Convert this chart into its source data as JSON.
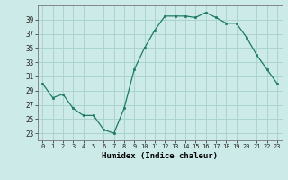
{
  "x": [
    0,
    1,
    2,
    3,
    4,
    5,
    6,
    7,
    8,
    9,
    10,
    11,
    12,
    13,
    14,
    15,
    16,
    17,
    18,
    19,
    20,
    21,
    22,
    23
  ],
  "y": [
    30,
    28,
    28.5,
    26.5,
    25.5,
    25.5,
    23.5,
    23,
    26.5,
    32,
    35,
    37.5,
    39.5,
    39.5,
    39.5,
    39.3,
    40,
    39.3,
    38.5,
    38.5,
    36.5,
    34,
    32,
    30
  ],
  "line_color": "#1e7a64",
  "marker_color": "#1e7a64",
  "bg_color": "#cceae7",
  "grid_color": "#aad4cf",
  "xlabel": "Humidex (Indice chaleur)",
  "ylim": [
    22,
    41
  ],
  "yticks": [
    23,
    25,
    27,
    29,
    31,
    33,
    35,
    37,
    39
  ],
  "xticks": [
    0,
    1,
    2,
    3,
    4,
    5,
    6,
    7,
    8,
    9,
    10,
    11,
    12,
    13,
    14,
    15,
    16,
    17,
    18,
    19,
    20,
    21,
    22,
    23
  ]
}
